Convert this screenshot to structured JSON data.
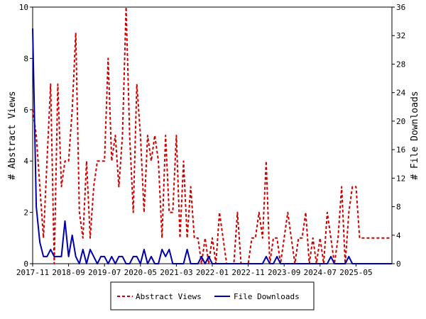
{
  "chart_data": {
    "type": "line",
    "ylabel_left": "# Abstract Views",
    "ylabel_right": "# File Downloads",
    "ylim_left": [
      0,
      10
    ],
    "ylim_right": [
      0,
      36
    ],
    "yticks_left": [
      0,
      2,
      4,
      6,
      8,
      10
    ],
    "yticks_right": [
      0,
      4,
      8,
      12,
      16,
      20,
      24,
      28,
      32,
      36
    ],
    "xlim": [
      "2017-11",
      "2026-03"
    ],
    "xticks": [
      "2017-11",
      "2018-09",
      "2019-07",
      "2020-05",
      "2021-03",
      "2022-01",
      "2022-11",
      "2023-09",
      "2024-07",
      "2025-05"
    ],
    "x": [
      "2017-11",
      "2017-12",
      "2018-01",
      "2018-02",
      "2018-03",
      "2018-04",
      "2018-05",
      "2018-06",
      "2018-07",
      "2018-08",
      "2018-09",
      "2018-10",
      "2018-11",
      "2018-12",
      "2019-01",
      "2019-02",
      "2019-03",
      "2019-04",
      "2019-05",
      "2019-06",
      "2019-07",
      "2019-08",
      "2019-09",
      "2019-10",
      "2019-11",
      "2019-12",
      "2020-01",
      "2020-02",
      "2020-03",
      "2020-04",
      "2020-05",
      "2020-06",
      "2020-07",
      "2020-08",
      "2020-09",
      "2020-10",
      "2020-11",
      "2020-12",
      "2021-01",
      "2021-02",
      "2021-03",
      "2021-04",
      "2021-05",
      "2021-06",
      "2021-07",
      "2021-08",
      "2021-09",
      "2021-10",
      "2021-11",
      "2021-12",
      "2022-01",
      "2022-02",
      "2022-03",
      "2022-04",
      "2022-05",
      "2022-06",
      "2022-07",
      "2022-08",
      "2022-09",
      "2022-10",
      "2022-11",
      "2022-12",
      "2023-01",
      "2023-02",
      "2023-03",
      "2023-04",
      "2023-05",
      "2023-06",
      "2023-07",
      "2023-08",
      "2023-09",
      "2023-10",
      "2023-11",
      "2023-12",
      "2024-01",
      "2024-02",
      "2024-03",
      "2024-04",
      "2024-05",
      "2024-06",
      "2024-07",
      "2024-08",
      "2024-09",
      "2024-10",
      "2024-11",
      "2024-12",
      "2025-01",
      "2025-02",
      "2025-03",
      "2025-04",
      "2025-05",
      "2025-06",
      "2025-07",
      "2025-08",
      "2025-09",
      "2025-10",
      "2025-11",
      "2025-12",
      "2026-01",
      "2026-02",
      "2026-03"
    ],
    "series": [
      {
        "name": "Abstract Views",
        "axis": "left",
        "color": "#cc0000",
        "style": "dashed",
        "values": [
          6,
          5,
          3,
          1,
          4,
          7,
          0,
          7,
          3,
          4,
          4,
          6,
          9,
          2,
          1,
          4,
          1,
          3,
          4,
          4,
          4,
          8,
          4,
          5,
          3,
          5,
          10,
          5,
          2,
          7,
          5,
          2,
          5,
          4,
          5,
          4,
          1,
          5,
          2,
          2,
          5,
          1,
          4,
          1,
          3,
          1,
          1,
          0,
          1,
          0,
          1,
          0,
          2,
          1,
          0,
          0,
          0,
          2,
          0,
          0,
          0,
          1,
          1,
          2,
          1,
          4,
          0,
          1,
          1,
          0,
          1,
          2,
          1,
          0,
          1,
          1,
          2,
          0,
          1,
          0,
          1,
          0,
          2,
          1,
          0,
          1,
          3,
          0,
          2,
          3,
          3,
          1,
          1,
          1,
          1,
          1,
          1,
          1,
          1,
          1,
          1
        ]
      },
      {
        "name": "File Downloads",
        "axis": "right",
        "color": "#0000aa",
        "style": "solid",
        "values": [
          33,
          8,
          3,
          1,
          1,
          2,
          1,
          1,
          1,
          6,
          1,
          4,
          1,
          0,
          2,
          0,
          2,
          1,
          0,
          1,
          1,
          0,
          1,
          0,
          1,
          1,
          0,
          0,
          1,
          1,
          0,
          2,
          0,
          1,
          0,
          0,
          2,
          1,
          2,
          0,
          0,
          0,
          0,
          2,
          0,
          0,
          0,
          1,
          0,
          1,
          0,
          0,
          0,
          0,
          0,
          0,
          0,
          0,
          0,
          0,
          0,
          0,
          0,
          0,
          0,
          1,
          0,
          0,
          1,
          0,
          0,
          0,
          0,
          0,
          0,
          0,
          0,
          0,
          0,
          0,
          0,
          0,
          0,
          1,
          0,
          0,
          0,
          0,
          1,
          0,
          0,
          0,
          0,
          0,
          0,
          0,
          0,
          0,
          0,
          0,
          0
        ]
      }
    ],
    "legend_position": "bottom-center",
    "grid": false
  }
}
